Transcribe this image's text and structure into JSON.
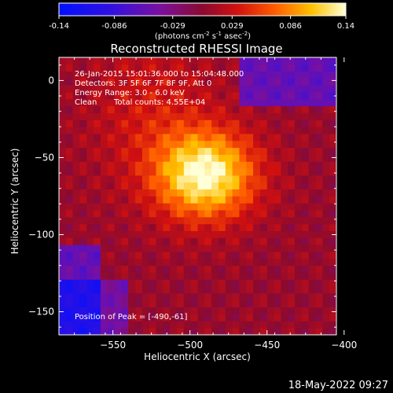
{
  "chart_data": {
    "type": "heatmap",
    "title": "Reconstructed RHESSI Image",
    "xlabel": "Heliocentric X (arcsec)",
    "ylabel": "Heliocentric Y (arcsec)",
    "xlim": [
      -585,
      -405
    ],
    "ylim": [
      -165,
      15
    ],
    "x_ticks": [
      -550,
      -500,
      -450,
      -400
    ],
    "y_ticks": [
      0,
      -50,
      -100,
      -150
    ],
    "colorbar": {
      "ticks": [
        "-0.14",
        "-0.086",
        "-0.029",
        "0.029",
        "0.086",
        "0.14"
      ],
      "range": [
        -0.14,
        0.14
      ],
      "unit_label": "(photons cm",
      "unit_sup1": "-2",
      "unit_mid": " s",
      "unit_sup2": "-1",
      "unit_mid2": " asec",
      "unit_sup3": "-2",
      "unit_end": ")"
    },
    "annotations": {
      "time_range": "26-Jan-2015 15:01:36.000 to 15:04:48.000",
      "detectors": "Detectors: 3F 5F 6F 7F 8F 9F, Att 0",
      "energy": "Energy Range: 3.0 - 6.0 keV",
      "algorithm": "Clean",
      "counts": "Total counts: 4.55E+04",
      "peak": "Position of Peak = [-490,-61]"
    },
    "peak": {
      "x": -490,
      "y": -61,
      "value": 0.14
    }
  },
  "footer": {
    "date": "18-May-2022 09:27"
  }
}
